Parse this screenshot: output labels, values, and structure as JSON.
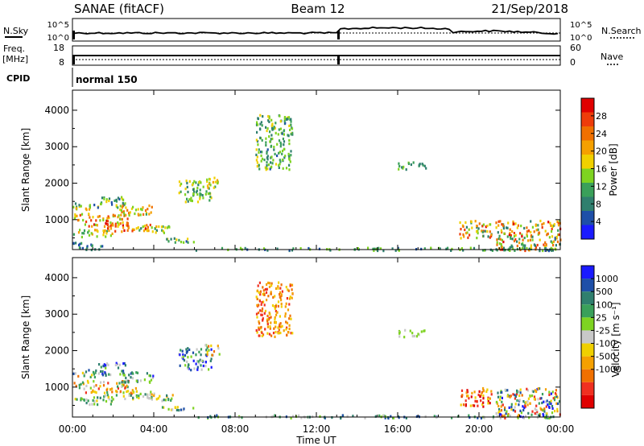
{
  "header": {
    "title": "SANAE (fitACF)",
    "beam": "Beam 12",
    "date": "21/Sep/2018"
  },
  "top_panel": {
    "left_label": "N.Sky",
    "left_ticks": [
      "10^5",
      "10^0"
    ],
    "right_label": "N.Search",
    "right_ticks": [
      "10^5",
      "10^0"
    ]
  },
  "freq_panel": {
    "left_label_1": "Freq.",
    "left_label_2": "[MHz]",
    "left_ticks": [
      "18",
      "8"
    ],
    "right_label": "Nave",
    "right_ticks": [
      "60",
      "0"
    ]
  },
  "cpid": {
    "label": "CPID",
    "value": "normal 150"
  },
  "colors": {
    "power": [
      "#1a1aff",
      "#1e4fa8",
      "#2f7f6e",
      "#3aa05a",
      "#7ed321",
      "#f0d000",
      "#f5a000",
      "#f07000",
      "#ee3c0a",
      "#e00000"
    ],
    "velocity": [
      "#e00000",
      "#f03020",
      "#f07000",
      "#f5a000",
      "#f0d000",
      "#c8c8c8",
      "#7ed321",
      "#3aa05a",
      "#2f7f6e",
      "#1e4fa8",
      "#1a1aff"
    ]
  },
  "chart_data": [
    {
      "type": "heatmap",
      "name": "Power",
      "xlabel": "",
      "ylabel": "Slant Range [km]",
      "x_ticks": [
        "00:00",
        "04:00",
        "08:00",
        "12:00",
        "16:00",
        "20:00",
        "00:00"
      ],
      "y_ticks": [
        1000,
        2000,
        3000,
        4000
      ],
      "ylim": [
        180,
        4550
      ],
      "xlim": [
        0,
        24
      ],
      "colorbar": {
        "label": "Power [dB]",
        "ticks": [
          4,
          8,
          12,
          16,
          20,
          24,
          28
        ],
        "range": [
          0,
          32
        ]
      },
      "clusters": [
        {
          "t": [
            0.0,
            1.2
          ],
          "r": [
            1300,
            1500
          ],
          "v": [
            6,
            26
          ]
        },
        {
          "t": [
            0.0,
            2.8
          ],
          "r": [
            1000,
            1200
          ],
          "v": [
            10,
            28
          ]
        },
        {
          "t": [
            0.5,
            3.2
          ],
          "r": [
            850,
            1000
          ],
          "v": [
            14,
            30
          ]
        },
        {
          "t": [
            1.5,
            4.0
          ],
          "r": [
            700,
            900
          ],
          "v": [
            16,
            30
          ]
        },
        {
          "t": [
            0.0,
            2.0
          ],
          "r": [
            550,
            750
          ],
          "v": [
            10,
            22
          ]
        },
        {
          "t": [
            1.2,
            2.6
          ],
          "r": [
            1350,
            1700
          ],
          "v": [
            4,
            18
          ]
        },
        {
          "t": [
            2.3,
            4.0
          ],
          "r": [
            1150,
            1450
          ],
          "v": [
            12,
            26
          ]
        },
        {
          "t": [
            3.2,
            4.9
          ],
          "r": [
            650,
            850
          ],
          "v": [
            8,
            22
          ]
        },
        {
          "t": [
            0.0,
            1.6
          ],
          "r": [
            200,
            400
          ],
          "v": [
            4,
            14
          ]
        },
        {
          "t": [
            4.3,
            6.0
          ],
          "r": [
            400,
            520
          ],
          "v": [
            6,
            20
          ]
        },
        {
          "t": [
            5.2,
            6.8
          ],
          "r": [
            1500,
            2100
          ],
          "v": [
            8,
            18
          ]
        },
        {
          "t": [
            6.4,
            7.2
          ],
          "r": [
            1900,
            2200
          ],
          "v": [
            12,
            22
          ]
        },
        {
          "t": [
            9.0,
            10.8
          ],
          "r": [
            2400,
            3900
          ],
          "v": [
            6,
            18
          ]
        },
        {
          "t": [
            16.0,
            17.4
          ],
          "r": [
            2400,
            2600
          ],
          "v": [
            6,
            16
          ]
        },
        {
          "t": [
            19.0,
            20.6
          ],
          "r": [
            500,
            1000
          ],
          "v": [
            6,
            30
          ]
        },
        {
          "t": [
            20.8,
            24.0
          ],
          "r": [
            180,
            1000
          ],
          "v": [
            6,
            30
          ]
        },
        {
          "t": [
            6.0,
            24.0
          ],
          "r": [
            180,
            260
          ],
          "v": [
            4,
            16
          ]
        }
      ]
    },
    {
      "type": "heatmap",
      "name": "Velocity",
      "xlabel": "Time UT",
      "ylabel": "Slant Range [km]",
      "x_ticks": [
        "00:00",
        "04:00",
        "08:00",
        "12:00",
        "16:00",
        "20:00",
        "00:00"
      ],
      "y_ticks": [
        1000,
        2000,
        3000,
        4000
      ],
      "ylim": [
        180,
        4550
      ],
      "xlim": [
        0,
        24
      ],
      "colorbar": {
        "label": "Velocity [m s⁻¹]",
        "ticks": [
          "1000",
          "500",
          "100",
          "25",
          "-25",
          "-100",
          "-500",
          "-1000"
        ]
      },
      "clusters": [
        {
          "t": [
            0.0,
            1.2
          ],
          "r": [
            1300,
            1500
          ],
          "v": [
            2,
            9
          ]
        },
        {
          "t": [
            0.0,
            2.8
          ],
          "r": [
            1000,
            1200
          ],
          "v": [
            1,
            7
          ]
        },
        {
          "t": [
            0.5,
            3.2
          ],
          "r": [
            850,
            1000
          ],
          "v": [
            1,
            5
          ]
        },
        {
          "t": [
            1.5,
            4.0
          ],
          "r": [
            700,
            900
          ],
          "v": [
            4,
            8
          ]
        },
        {
          "t": [
            0.0,
            2.0
          ],
          "r": [
            550,
            750
          ],
          "v": [
            4,
            8
          ]
        },
        {
          "t": [
            1.2,
            2.6
          ],
          "r": [
            1350,
            1700
          ],
          "v": [
            5,
            10
          ]
        },
        {
          "t": [
            2.3,
            4.0
          ],
          "r": [
            1150,
            1450
          ],
          "v": [
            5,
            10
          ]
        },
        {
          "t": [
            3.2,
            4.9
          ],
          "r": [
            650,
            850
          ],
          "v": [
            3,
            8
          ]
        },
        {
          "t": [
            4.3,
            6.0
          ],
          "r": [
            400,
            520
          ],
          "v": [
            4,
            9
          ]
        },
        {
          "t": [
            5.2,
            6.8
          ],
          "r": [
            1500,
            2100
          ],
          "v": [
            5,
            10
          ]
        },
        {
          "t": [
            6.4,
            7.2
          ],
          "r": [
            1900,
            2200
          ],
          "v": [
            2,
            7
          ]
        },
        {
          "t": [
            9.0,
            10.8
          ],
          "r": [
            2400,
            3900
          ],
          "v": [
            1,
            4
          ]
        },
        {
          "t": [
            16.0,
            17.4
          ],
          "r": [
            2400,
            2600
          ],
          "v": [
            5,
            6
          ]
        },
        {
          "t": [
            19.0,
            20.6
          ],
          "r": [
            500,
            1000
          ],
          "v": [
            0,
            4
          ]
        },
        {
          "t": [
            20.8,
            24.0
          ],
          "r": [
            180,
            1000
          ],
          "v": [
            1,
            10
          ]
        },
        {
          "t": [
            6.0,
            24.0
          ],
          "r": [
            180,
            260
          ],
          "v": [
            5,
            9
          ]
        }
      ]
    }
  ]
}
